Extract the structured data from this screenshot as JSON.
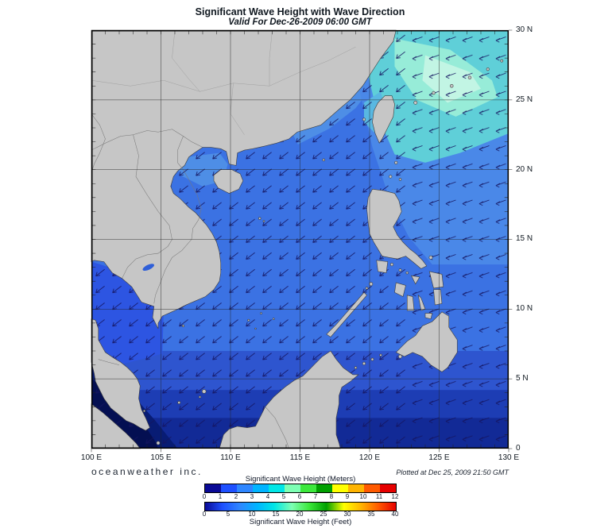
{
  "header": {
    "title": "Significant Wave Height with Wave Direction",
    "subtitle": "Valid For Dec-26-2009 06:00 GMT"
  },
  "map": {
    "x_ticks": [
      "100 E",
      "105 E",
      "110 E",
      "115 E",
      "120 E",
      "125 E",
      "130 E"
    ],
    "y_ticks": [
      "30 N",
      "25 N",
      "20 N",
      "15 N",
      "10 N",
      "5 N",
      "0"
    ]
  },
  "footer": {
    "branding": "oceanweather inc.",
    "plotted_at": "Plotted at Dec 25, 2009 21:50 GMT"
  },
  "legend": {
    "meters_label": "Significant Wave Height (Meters)",
    "feet_label": "Significant Wave Height (Feet)",
    "meters_ticks": [
      "0",
      "1",
      "2",
      "3",
      "4",
      "5",
      "6",
      "7",
      "8",
      "9",
      "10",
      "11",
      "12"
    ],
    "feet_ticks": [
      "0",
      "5",
      "10",
      "15",
      "20",
      "25",
      "30",
      "35",
      "40"
    ],
    "colors": [
      "#0a0a96",
      "#1e50ff",
      "#2e86ff",
      "#00b4ff",
      "#00e6e6",
      "#7dffb4",
      "#3ce83c",
      "#00a000",
      "#ffff00",
      "#ffb400",
      "#ff5a00",
      "#e60000"
    ]
  }
}
